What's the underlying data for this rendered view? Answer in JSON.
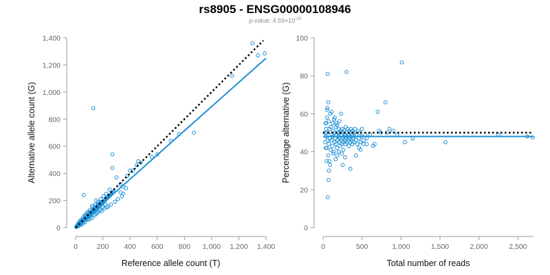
{
  "title": "rs8905 - ENSG00000108946",
  "subtitle": {
    "prefix": "p-value: 4.59×10",
    "exponent": "-33"
  },
  "colors": {
    "points": "#1e90d6",
    "fit_line": "#1e90d6",
    "expected_line": "#000000",
    "axis": "#9a9a9a"
  },
  "chart_data": [
    {
      "type": "scatter",
      "xlabel": "Reference allele count (T)",
      "ylabel": "Alternative allele count (G)",
      "xlim": [
        0,
        1400
      ],
      "ylim": [
        0,
        1400
      ],
      "xticks": [
        0,
        200,
        400,
        600,
        800,
        1000,
        1200,
        1400
      ],
      "xtick_labels": [
        "0",
        "200",
        "400",
        "600",
        "800",
        "1,000",
        "1,200",
        "1,400"
      ],
      "yticks": [
        0,
        200,
        400,
        600,
        800,
        1000,
        1200,
        1400
      ],
      "ytick_labels": [
        "0",
        "200",
        "400",
        "600",
        "800",
        "1,000",
        "1,200",
        "1,400"
      ],
      "grid": false,
      "fit_line": {
        "style": "solid",
        "x": [
          0,
          1400
        ],
        "y": [
          0,
          1250
        ]
      },
      "expected_line": {
        "style": "dotted",
        "x": [
          0,
          1380
        ],
        "y": [
          0,
          1380
        ]
      },
      "points": [
        [
          5,
          4
        ],
        [
          8,
          10
        ],
        [
          10,
          6
        ],
        [
          12,
          14
        ],
        [
          15,
          10
        ],
        [
          18,
          20
        ],
        [
          20,
          12
        ],
        [
          22,
          25
        ],
        [
          25,
          18
        ],
        [
          28,
          30
        ],
        [
          30,
          22
        ],
        [
          32,
          35
        ],
        [
          35,
          28
        ],
        [
          38,
          40
        ],
        [
          40,
          30
        ],
        [
          42,
          45
        ],
        [
          45,
          38
        ],
        [
          48,
          50
        ],
        [
          50,
          40
        ],
        [
          52,
          55
        ],
        [
          55,
          45
        ],
        [
          58,
          60
        ],
        [
          60,
          48
        ],
        [
          62,
          65
        ],
        [
          65,
          55
        ],
        [
          68,
          70
        ],
        [
          70,
          58
        ],
        [
          72,
          75
        ],
        [
          75,
          62
        ],
        [
          78,
          80
        ],
        [
          80,
          65
        ],
        [
          82,
          85
        ],
        [
          85,
          70
        ],
        [
          88,
          90
        ],
        [
          90,
          75
        ],
        [
          92,
          95
        ],
        [
          95,
          80
        ],
        [
          98,
          100
        ],
        [
          100,
          85
        ],
        [
          102,
          105
        ],
        [
          105,
          90
        ],
        [
          108,
          110
        ],
        [
          110,
          95
        ],
        [
          112,
          115
        ],
        [
          115,
          100
        ],
        [
          118,
          120
        ],
        [
          120,
          105
        ],
        [
          122,
          125
        ],
        [
          125,
          110
        ],
        [
          128,
          130
        ],
        [
          130,
          115
        ],
        [
          132,
          135
        ],
        [
          135,
          120
        ],
        [
          138,
          140
        ],
        [
          140,
          125
        ],
        [
          142,
          145
        ],
        [
          145,
          130
        ],
        [
          148,
          150
        ],
        [
          150,
          135
        ],
        [
          152,
          155
        ],
        [
          155,
          140
        ],
        [
          158,
          160
        ],
        [
          160,
          145
        ],
        [
          162,
          165
        ],
        [
          165,
          150
        ],
        [
          168,
          170
        ],
        [
          170,
          155
        ],
        [
          172,
          175
        ],
        [
          175,
          160
        ],
        [
          178,
          180
        ],
        [
          180,
          165
        ],
        [
          182,
          185
        ],
        [
          185,
          170
        ],
        [
          188,
          190
        ],
        [
          190,
          175
        ],
        [
          195,
          180
        ],
        [
          200,
          185
        ],
        [
          205,
          190
        ],
        [
          210,
          195
        ],
        [
          215,
          200
        ],
        [
          220,
          205
        ],
        [
          225,
          210
        ],
        [
          230,
          215
        ],
        [
          235,
          220
        ],
        [
          240,
          225
        ],
        [
          245,
          230
        ],
        [
          250,
          235
        ],
        [
          255,
          240
        ],
        [
          260,
          245
        ],
        [
          265,
          250
        ],
        [
          270,
          255
        ],
        [
          275,
          260
        ],
        [
          280,
          265
        ],
        [
          60,
          240
        ],
        [
          40,
          20
        ],
        [
          55,
          30
        ],
        [
          90,
          60
        ],
        [
          110,
          80
        ],
        [
          120,
          70
        ],
        [
          140,
          90
        ],
        [
          160,
          110
        ],
        [
          180,
          130
        ],
        [
          200,
          150
        ],
        [
          220,
          170
        ],
        [
          150,
          100
        ],
        [
          170,
          120
        ],
        [
          100,
          60
        ],
        [
          70,
          40
        ],
        [
          30,
          45
        ],
        [
          20,
          30
        ],
        [
          45,
          60
        ],
        [
          65,
          90
        ],
        [
          85,
          110
        ],
        [
          105,
          130
        ],
        [
          125,
          150
        ],
        [
          145,
          170
        ],
        [
          165,
          190
        ],
        [
          185,
          210
        ],
        [
          205,
          230
        ],
        [
          225,
          250
        ],
        [
          130,
          880
        ],
        [
          270,
          540
        ],
        [
          270,
          440
        ],
        [
          300,
          370
        ],
        [
          330,
          320
        ],
        [
          350,
          300
        ],
        [
          380,
          380
        ],
        [
          400,
          420
        ],
        [
          420,
          420
        ],
        [
          450,
          460
        ],
        [
          460,
          490
        ],
        [
          480,
          480
        ],
        [
          560,
          520
        ],
        [
          600,
          540
        ],
        [
          700,
          640
        ],
        [
          760,
          690
        ],
        [
          870,
          700
        ],
        [
          1150,
          1120
        ],
        [
          1300,
          1360
        ],
        [
          1340,
          1270
        ],
        [
          1390,
          1285
        ],
        [
          240,
          155
        ],
        [
          260,
          170
        ],
        [
          290,
          190
        ],
        [
          310,
          210
        ],
        [
          330,
          260
        ],
        [
          340,
          230
        ],
        [
          350,
          250
        ],
        [
          370,
          290
        ],
        [
          250,
          280
        ],
        [
          230,
          150
        ],
        [
          210,
          140
        ],
        [
          190,
          120
        ],
        [
          150,
          200
        ],
        [
          120,
          160
        ],
        [
          95,
          115
        ],
        [
          75,
          95
        ],
        [
          55,
          75
        ],
        [
          35,
          50
        ],
        [
          15,
          20
        ]
      ]
    },
    {
      "type": "scatter",
      "xlabel": "Total number of reads",
      "ylabel": "Percentage alternative (G)",
      "xlim": [
        0,
        2700
      ],
      "ylim": [
        0,
        100
      ],
      "xticks": [
        0,
        500,
        1000,
        1500,
        2000,
        2500
      ],
      "xtick_labels": [
        "0",
        "500",
        "1,000",
        "1,500",
        "2,000",
        "2,500"
      ],
      "yticks": [
        0,
        20,
        40,
        60,
        80,
        100
      ],
      "ytick_labels": [
        "0",
        "20",
        "40",
        "60",
        "80",
        "100"
      ],
      "grid": false,
      "fit_line": {
        "style": "solid",
        "x": [
          0,
          2700
        ],
        "y": [
          48,
          48
        ]
      },
      "expected_line": {
        "style": "dotted",
        "x": [
          0,
          2700
        ],
        "y": [
          50,
          50
        ]
      },
      "points": [
        [
          20,
          50
        ],
        [
          25,
          45
        ],
        [
          30,
          55
        ],
        [
          35,
          48
        ],
        [
          40,
          52
        ],
        [
          45,
          42
        ],
        [
          50,
          58
        ],
        [
          55,
          46
        ],
        [
          60,
          50
        ],
        [
          65,
          38
        ],
        [
          70,
          56
        ],
        [
          75,
          44
        ],
        [
          80,
          52
        ],
        [
          85,
          47
        ],
        [
          90,
          60
        ],
        [
          95,
          41
        ],
        [
          100,
          53
        ],
        [
          105,
          46
        ],
        [
          110,
          49
        ],
        [
          115,
          43
        ],
        [
          120,
          55
        ],
        [
          125,
          48
        ],
        [
          130,
          51
        ],
        [
          135,
          40
        ],
        [
          140,
          57
        ],
        [
          145,
          45
        ],
        [
          150,
          50
        ],
        [
          155,
          47
        ],
        [
          160,
          53
        ],
        [
          165,
          44
        ],
        [
          170,
          49
        ],
        [
          175,
          42
        ],
        [
          180,
          54
        ],
        [
          185,
          46
        ],
        [
          190,
          50
        ],
        [
          195,
          48
        ],
        [
          200,
          52
        ],
        [
          205,
          45
        ],
        [
          210,
          47
        ],
        [
          215,
          50
        ],
        [
          220,
          43
        ],
        [
          225,
          51
        ],
        [
          230,
          46
        ],
        [
          235,
          49
        ],
        [
          240,
          44
        ],
        [
          245,
          52
        ],
        [
          250,
          47
        ],
        [
          255,
          50
        ],
        [
          260,
          45
        ],
        [
          265,
          48
        ],
        [
          270,
          51
        ],
        [
          275,
          46
        ],
        [
          280,
          49
        ],
        [
          285,
          44
        ],
        [
          290,
          53
        ],
        [
          295,
          47
        ],
        [
          300,
          50
        ],
        [
          305,
          45
        ],
        [
          310,
          48
        ],
        [
          315,
          52
        ],
        [
          320,
          46
        ],
        [
          325,
          49
        ],
        [
          330,
          43
        ],
        [
          335,
          51
        ],
        [
          340,
          47
        ],
        [
          345,
          50
        ],
        [
          350,
          45
        ],
        [
          355,
          48
        ],
        [
          360,
          52
        ],
        [
          365,
          46
        ],
        [
          370,
          49
        ],
        [
          375,
          44
        ],
        [
          380,
          51
        ],
        [
          385,
          47
        ],
        [
          390,
          50
        ],
        [
          395,
          45
        ],
        [
          400,
          48
        ],
        [
          410,
          52
        ],
        [
          420,
          46
        ],
        [
          430,
          49
        ],
        [
          440,
          44
        ],
        [
          450,
          51
        ],
        [
          460,
          47
        ],
        [
          470,
          50
        ],
        [
          480,
          45
        ],
        [
          490,
          48
        ],
        [
          500,
          52
        ],
        [
          520,
          46
        ],
        [
          540,
          49
        ],
        [
          560,
          44
        ],
        [
          60,
          81
        ],
        [
          300,
          82
        ],
        [
          1010,
          87
        ],
        [
          60,
          16
        ],
        [
          70,
          25
        ],
        [
          75,
          30
        ],
        [
          80,
          35
        ],
        [
          90,
          33
        ],
        [
          65,
          66
        ],
        [
          55,
          63
        ],
        [
          110,
          61
        ],
        [
          130,
          39
        ],
        [
          160,
          36
        ],
        [
          180,
          38
        ],
        [
          200,
          40
        ],
        [
          250,
          33
        ],
        [
          280,
          37
        ],
        [
          350,
          31
        ],
        [
          420,
          38
        ],
        [
          460,
          42
        ],
        [
          480,
          41
        ],
        [
          520,
          44
        ],
        [
          560,
          47
        ],
        [
          600,
          49
        ],
        [
          640,
          43
        ],
        [
          660,
          44
        ],
        [
          700,
          61
        ],
        [
          720,
          51
        ],
        [
          740,
          50
        ],
        [
          800,
          66
        ],
        [
          820,
          50
        ],
        [
          850,
          52
        ],
        [
          900,
          51
        ],
        [
          950,
          49
        ],
        [
          1050,
          45
        ],
        [
          1150,
          47
        ],
        [
          1570,
          45
        ],
        [
          2250,
          49
        ],
        [
          2620,
          48
        ],
        [
          2690,
          47.5
        ],
        [
          40,
          55
        ],
        [
          50,
          62
        ],
        [
          45,
          35
        ],
        [
          35,
          42
        ],
        [
          150,
          58
        ],
        [
          170,
          55
        ],
        [
          210,
          56
        ],
        [
          230,
          60
        ],
        [
          240,
          39
        ],
        [
          260,
          41
        ]
      ]
    }
  ]
}
